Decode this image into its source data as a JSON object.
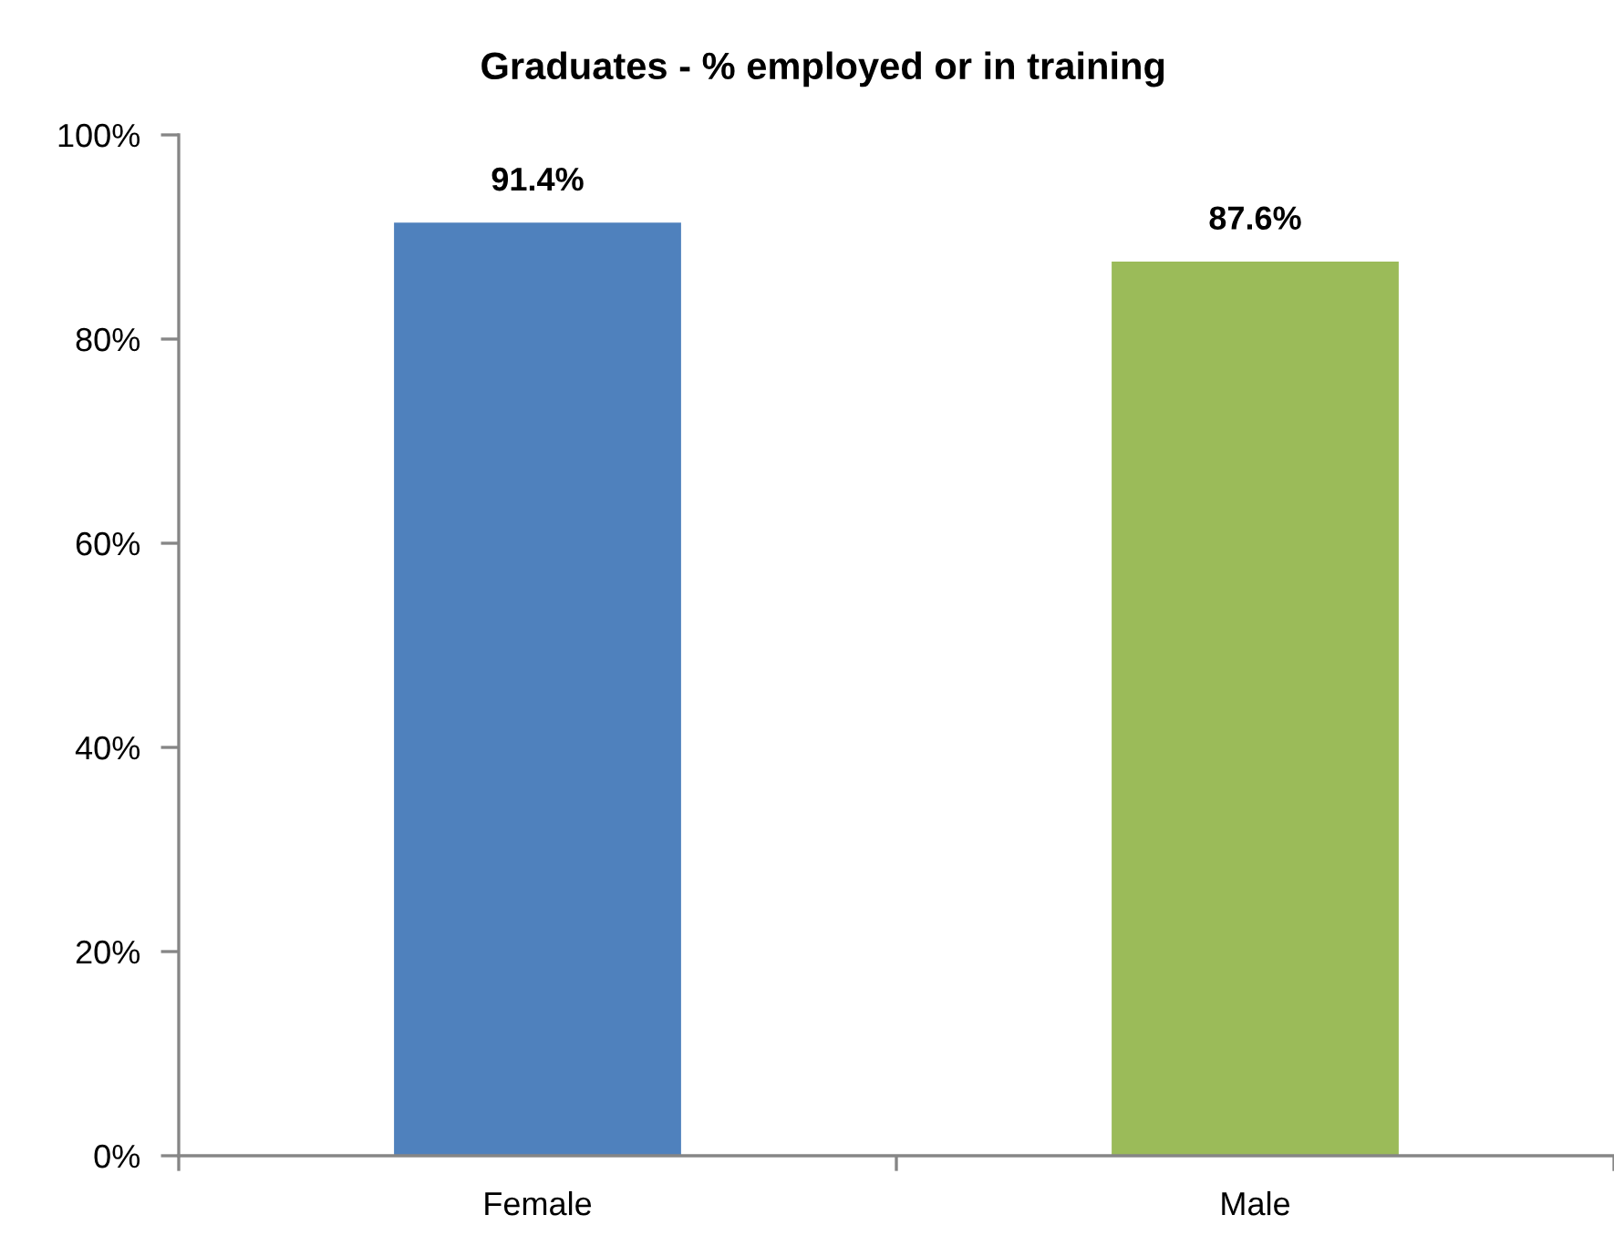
{
  "chart_data": {
    "type": "bar",
    "title": "Graduates - % employed or in training",
    "categories": [
      "Female",
      "Male"
    ],
    "values": [
      91.4,
      87.6
    ],
    "colors": [
      "#4f81bd",
      "#9bbb59"
    ],
    "value_labels": [
      "91.4%",
      "87.6%"
    ],
    "ylim": [
      0,
      100
    ],
    "yticks": [
      {
        "value": 0,
        "label": "0%"
      },
      {
        "value": 20,
        "label": "20%"
      },
      {
        "value": 40,
        "label": "40%"
      },
      {
        "value": 60,
        "label": "60%"
      },
      {
        "value": 80,
        "label": "80%"
      },
      {
        "value": 100,
        "label": "100%"
      }
    ]
  }
}
